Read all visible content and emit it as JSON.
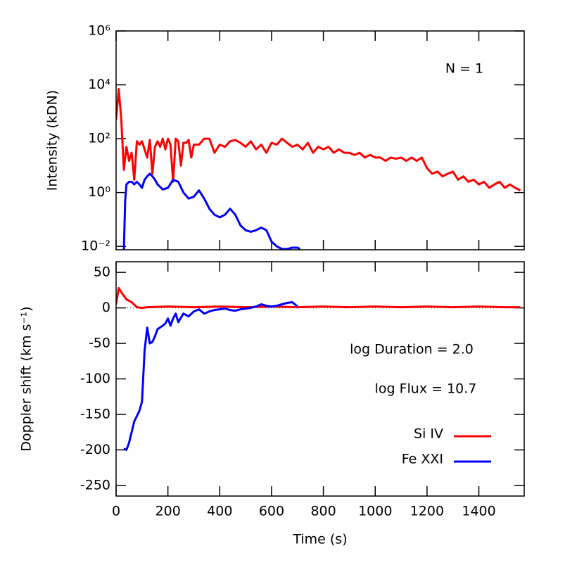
{
  "chart_data": [
    {
      "type": "line",
      "ylabel": "Intensity (kDN)",
      "log_y": true,
      "xlim": [
        0,
        1575
      ],
      "xticks": [
        0,
        200,
        400,
        600,
        800,
        1000,
        1200,
        1400
      ],
      "ylim": [
        0.0075,
        1000000
      ],
      "yticks": [
        {
          "value": 0.01,
          "label": "10⁻²"
        },
        {
          "value": 1,
          "label": "10⁰"
        },
        {
          "value": 100,
          "label": "10²"
        },
        {
          "value": 10000,
          "label": "10⁴"
        },
        {
          "value": 1000000,
          "label": "10⁶"
        }
      ],
      "annotations": [
        "N = 1"
      ],
      "series": [
        {
          "color": "#ff0000",
          "x": [
            0,
            10,
            20,
            30,
            40,
            50,
            60,
            70,
            80,
            90,
            100,
            110,
            120,
            130,
            140,
            150,
            160,
            170,
            180,
            190,
            200,
            210,
            220,
            230,
            240,
            250,
            260,
            270,
            280,
            290,
            300,
            320,
            340,
            360,
            380,
            400,
            420,
            440,
            460,
            480,
            500,
            520,
            540,
            560,
            580,
            600,
            620,
            640,
            660,
            680,
            700,
            720,
            740,
            760,
            780,
            800,
            820,
            840,
            860,
            880,
            900,
            920,
            940,
            960,
            980,
            1000,
            1020,
            1040,
            1060,
            1080,
            1100,
            1120,
            1140,
            1160,
            1180,
            1200,
            1220,
            1240,
            1260,
            1280,
            1300,
            1320,
            1340,
            1360,
            1380,
            1400,
            1420,
            1440,
            1460,
            1480,
            1500,
            1520,
            1540,
            1560
          ],
          "values": [
            500,
            7000,
            500,
            7,
            50,
            15,
            30,
            3,
            80,
            60,
            80,
            40,
            20,
            90,
            5,
            50,
            80,
            50,
            100,
            40,
            100,
            60,
            2.5,
            100,
            80,
            10,
            70,
            70,
            90,
            20,
            60,
            60,
            100,
            100,
            30,
            60,
            50,
            80,
            90,
            70,
            50,
            80,
            40,
            60,
            30,
            70,
            60,
            100,
            70,
            50,
            60,
            40,
            70,
            30,
            50,
            40,
            50,
            30,
            40,
            30,
            30,
            25,
            30,
            20,
            25,
            20,
            20,
            15,
            20,
            18,
            20,
            15,
            20,
            15,
            20,
            8,
            5,
            6,
            4,
            5,
            6,
            3,
            4,
            2.5,
            3,
            2,
            2.5,
            1.5,
            2,
            2.5,
            1.5,
            2,
            1.5,
            1.2
          ]
        },
        {
          "color": "#0000ff",
          "x": [
            30,
            35,
            40,
            50,
            60,
            70,
            80,
            90,
            100,
            110,
            120,
            130,
            140,
            150,
            160,
            180,
            200,
            220,
            240,
            260,
            280,
            300,
            320,
            340,
            360,
            380,
            400,
            420,
            440,
            460,
            480,
            500,
            520,
            540,
            560,
            580,
            600,
            620,
            640,
            660,
            680,
            700,
            710
          ],
          "values": [
            0.007,
            0.5,
            2,
            2.5,
            2.5,
            2,
            2.5,
            2,
            1.5,
            3,
            4,
            5,
            4,
            3,
            2,
            1.3,
            1.5,
            3,
            2.5,
            1,
            0.6,
            0.7,
            1.2,
            0.6,
            0.25,
            0.15,
            0.12,
            0.15,
            0.25,
            0.15,
            0.06,
            0.04,
            0.035,
            0.04,
            0.05,
            0.04,
            0.015,
            0.01,
            0.008,
            0.008,
            0.009,
            0.009,
            0.008
          ]
        }
      ]
    },
    {
      "type": "line",
      "ylabel": "Doppler shift (km s⁻¹)",
      "xlabel": "Time (s)",
      "xlim": [
        0,
        1575
      ],
      "xticks": [
        0,
        200,
        400,
        600,
        800,
        1000,
        1200,
        1400
      ],
      "ylim": [
        -265,
        65
      ],
      "yticks": [
        50,
        0,
        -50,
        -100,
        -150,
        -200,
        -250
      ],
      "annotations": [
        "log Duration = 2.0",
        "log Flux = 10.7"
      ],
      "series": [
        {
          "name": "Si IV",
          "color": "#ff0000",
          "x": [
            0,
            10,
            20,
            40,
            60,
            80,
            100,
            120,
            200,
            300,
            400,
            500,
            600,
            700,
            800,
            900,
            1000,
            1100,
            1200,
            1300,
            1400,
            1500,
            1560
          ],
          "values": [
            5,
            28,
            22,
            12,
            8,
            1,
            0,
            1,
            2,
            1,
            2,
            1,
            2,
            1,
            2,
            1,
            2,
            1,
            2,
            1,
            2,
            1,
            1
          ]
        },
        {
          "name": "Fe XXI",
          "color": "#0000ff",
          "x": [
            30,
            40,
            50,
            60,
            70,
            90,
            100,
            110,
            120,
            130,
            140,
            150,
            160,
            180,
            190,
            200,
            210,
            220,
            230,
            240,
            260,
            280,
            300,
            320,
            340,
            360,
            380,
            400,
            420,
            440,
            460,
            480,
            500,
            520,
            540,
            560,
            580,
            600,
            620,
            640,
            660,
            680,
            700
          ],
          "values": [
            -198,
            -200,
            -190,
            -175,
            -160,
            -145,
            -132,
            -60,
            -28,
            -50,
            -48,
            -40,
            -30,
            -25,
            -22,
            -15,
            -25,
            -15,
            -8,
            -20,
            -8,
            -12,
            -5,
            -2,
            -8,
            -5,
            -3,
            -2,
            -1,
            -3,
            -4,
            -2,
            -1,
            0,
            2,
            5,
            3,
            2,
            3,
            5,
            7,
            8,
            2
          ]
        }
      ]
    }
  ]
}
